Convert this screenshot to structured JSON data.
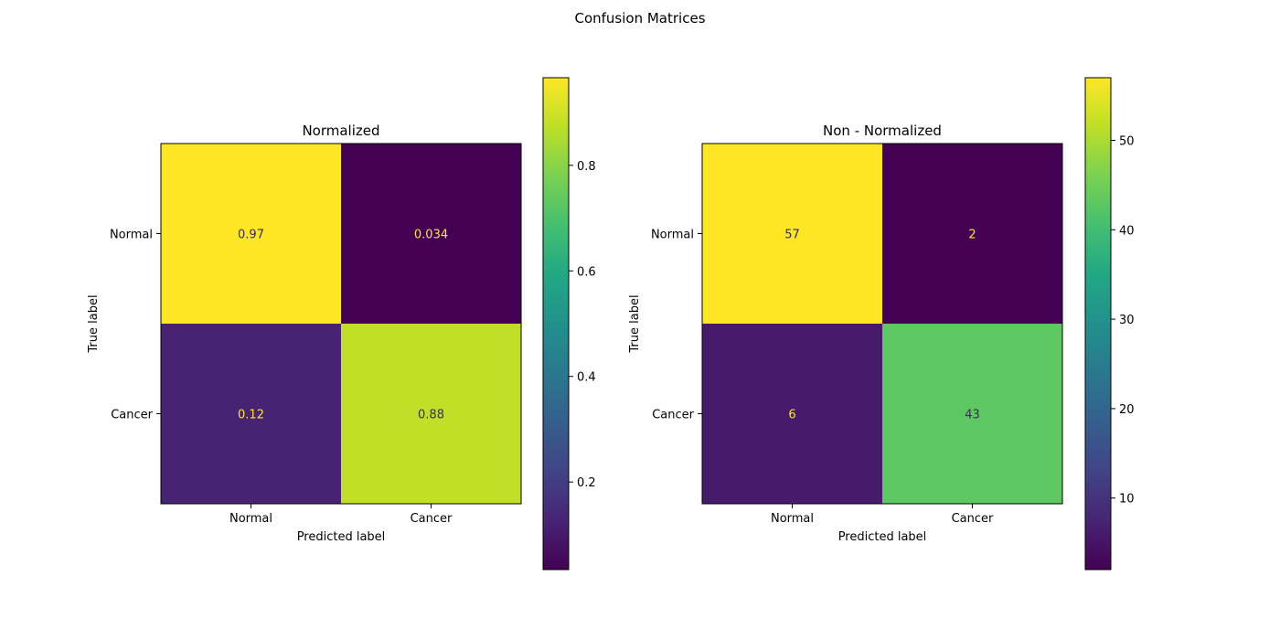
{
  "figure_title": "Confusion Matrices",
  "chart_data": [
    {
      "type": "heatmap",
      "title": "Normalized",
      "xlabel": "Predicted label",
      "ylabel": "True label",
      "x_categories": [
        "Normal",
        "Cancer"
      ],
      "y_categories": [
        "Normal",
        "Cancer"
      ],
      "values": [
        [
          0.966,
          0.034
        ],
        [
          0.122,
          0.878
        ]
      ],
      "value_labels": [
        [
          "0.97",
          "0.034"
        ],
        [
          "0.12",
          "0.88"
        ]
      ],
      "colorbar": {
        "range": [
          0.034,
          0.966
        ],
        "ticks": [
          0.2,
          0.4,
          0.6,
          0.8
        ],
        "tick_labels": [
          "0.2",
          "0.4",
          "0.6",
          "0.8"
        ]
      },
      "colormap": "viridis"
    },
    {
      "type": "heatmap",
      "title": "Non - Normalized",
      "xlabel": "Predicted label",
      "ylabel": "True label",
      "x_categories": [
        "Normal",
        "Cancer"
      ],
      "y_categories": [
        "Normal",
        "Cancer"
      ],
      "values": [
        [
          57,
          2
        ],
        [
          6,
          43
        ]
      ],
      "value_labels": [
        [
          "57",
          "2"
        ],
        [
          "6",
          "43"
        ]
      ],
      "colorbar": {
        "range": [
          2,
          57
        ],
        "ticks": [
          10,
          20,
          30,
          40,
          50
        ],
        "tick_labels": [
          "10",
          "20",
          "30",
          "40",
          "50"
        ]
      },
      "colormap": "viridis"
    }
  ]
}
